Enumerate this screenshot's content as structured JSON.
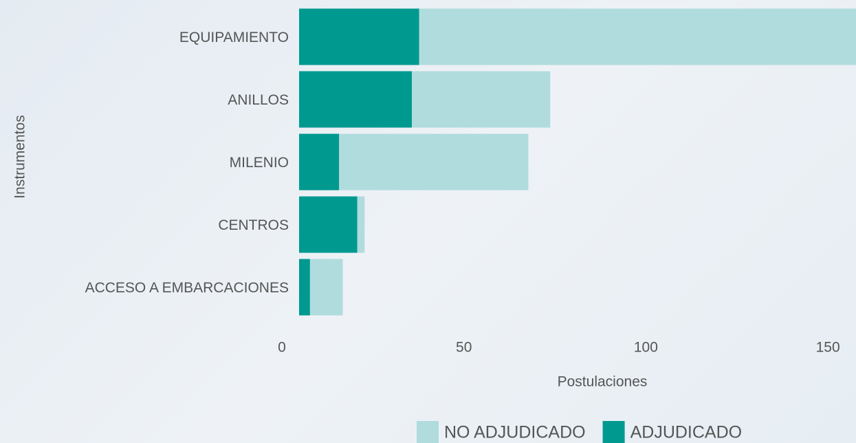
{
  "chart_data": {
    "type": "stacked-barh",
    "ylabel": "Instrumentos",
    "xlabel": "Postulaciones",
    "categories": [
      "EQUIPAMIENTO",
      "ANILLOS",
      "MILENIO",
      "CENTROS",
      "ACCESO A EMBARCACIONES"
    ],
    "series": [
      {
        "name": "ADJUDICADO",
        "color": "#009990",
        "values": [
          33,
          31,
          11,
          16,
          3
        ]
      },
      {
        "name": "NO ADJUDICADO",
        "color": "#b0dcdd",
        "values": [
          120,
          38,
          52,
          2,
          9
        ]
      }
    ],
    "legend_order": [
      1,
      0
    ],
    "xlim": [
      0,
      153
    ],
    "xticks": [
      0,
      50,
      100,
      150
    ]
  }
}
